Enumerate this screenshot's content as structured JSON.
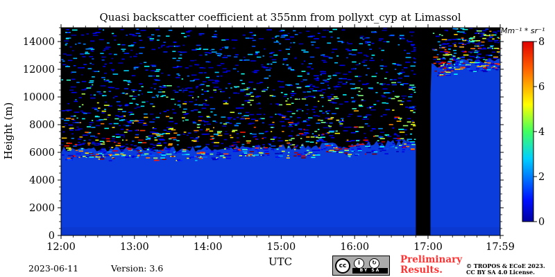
{
  "chart_data": {
    "type": "heatmap",
    "title": "Quasi backscatter coefficient at 355nm from pollyxt_cyp at Limassol",
    "xlabel": "UTC",
    "ylabel": "Height (m)",
    "x_ticks": [
      "12:00",
      "13:00",
      "14:00",
      "15:00",
      "16:00",
      "17:00",
      "17:59"
    ],
    "y_ticks": [
      "0",
      "2000",
      "4000",
      "6000",
      "8000",
      "10000",
      "12000",
      "14000"
    ],
    "ylim": [
      0,
      15000
    ],
    "colorbar": {
      "unit": "Mm⁻¹ * sr⁻¹",
      "range": [
        0,
        8
      ],
      "ticks": [
        "0",
        "2",
        "4",
        "6",
        "8"
      ],
      "colormap": "jet"
    },
    "description_layers": [
      {
        "feature": "aerosol/molecular signal",
        "value": 0.3,
        "height_top_m": [
          5800,
          6600
        ],
        "x_range": [
          "12:00",
          "17:59"
        ]
      },
      {
        "feature": "cloud/noise speckle",
        "value_range": [
          0.5,
          8
        ],
        "height_m": [
          6500,
          15000
        ]
      },
      {
        "feature": "no data gap",
        "x_range": [
          "16:50",
          "17:02"
        ]
      }
    ]
  },
  "footer": {
    "date": "2023-06-11",
    "version": "Version: 3.6",
    "preliminary_line1": "Preliminary",
    "preliminary_line2": "Results.",
    "copyright_line1": "© TROPOS & ECoE 2023.",
    "copyright_line2": "CC BY SA 4.0 License.",
    "license_logo_text": "BY  SA",
    "license_logo_cc": "cc"
  },
  "colors": {
    "background_signal": "#0b3ddc",
    "no_data": "#000000",
    "accent_red": "#ff3333"
  }
}
